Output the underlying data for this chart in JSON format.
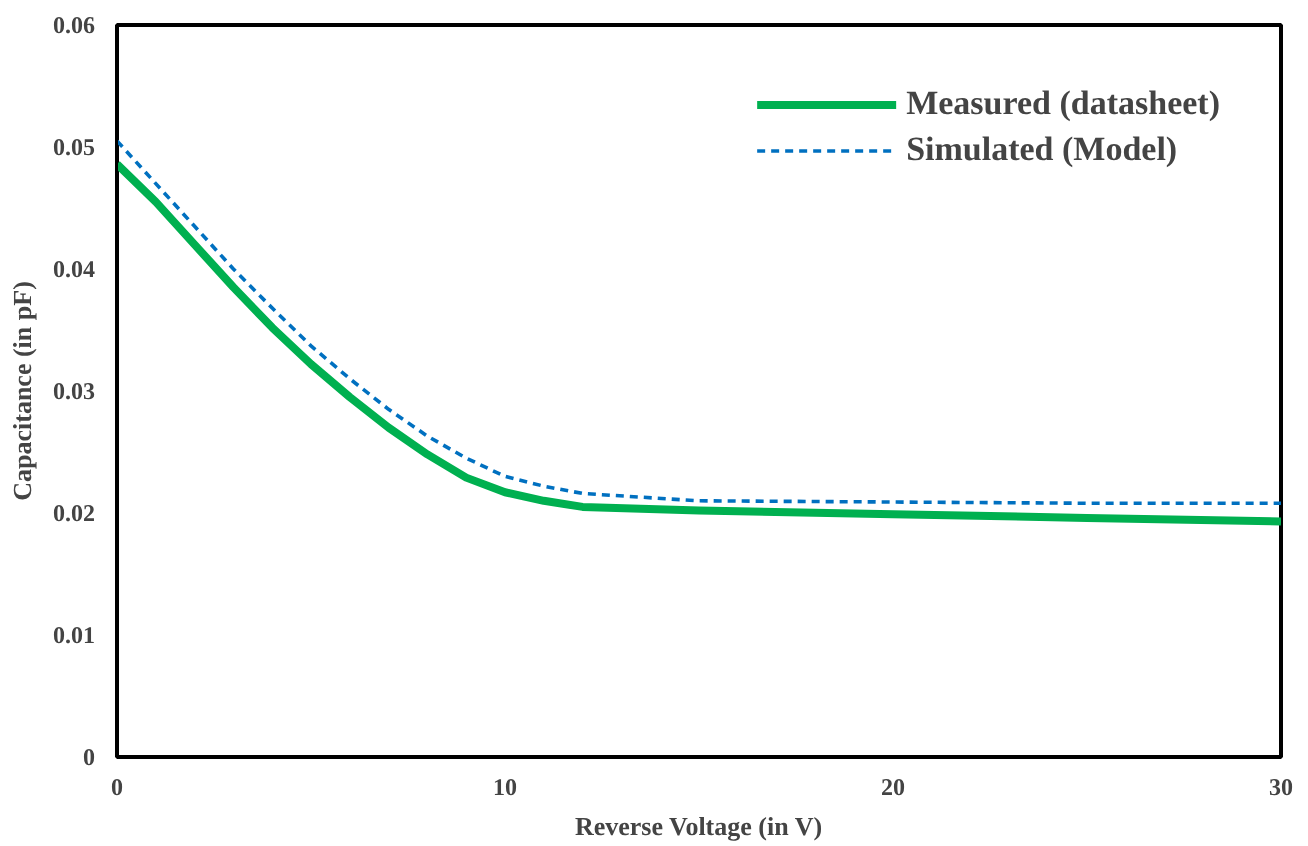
{
  "chart_data": {
    "type": "line",
    "xlabel": "Reverse Voltage (in V)",
    "ylabel": "Capacitance (in pF)",
    "x": [
      0,
      1,
      2,
      3,
      4,
      5,
      6,
      7,
      8,
      9,
      10,
      11,
      12,
      15,
      20,
      25,
      30
    ],
    "series": [
      {
        "name": "Measured (datasheet)",
        "color": "#00b050",
        "line_style": "solid",
        "values": [
          0.0486,
          0.0455,
          0.042,
          0.0385,
          0.0352,
          0.0322,
          0.0295,
          0.027,
          0.0248,
          0.0229,
          0.0217,
          0.021,
          0.0205,
          0.0202,
          0.0199,
          0.0196,
          0.0193
        ]
      },
      {
        "name": "Simulated (Model)",
        "color": "#0070c0",
        "line_style": "dashed",
        "values": [
          0.0505,
          0.047,
          0.0435,
          0.04,
          0.0368,
          0.0337,
          0.031,
          0.0285,
          0.0263,
          0.0245,
          0.023,
          0.0222,
          0.0216,
          0.021,
          0.0209,
          0.0208,
          0.0208
        ]
      }
    ],
    "xlim": [
      0,
      30
    ],
    "ylim": [
      0,
      0.06
    ],
    "xticks": [
      0,
      10,
      20,
      30
    ],
    "yticks": [
      0,
      0.01,
      0.02,
      0.03,
      0.04,
      0.05,
      0.06
    ],
    "grid": false,
    "legend": "top right",
    "marker": "none"
  }
}
